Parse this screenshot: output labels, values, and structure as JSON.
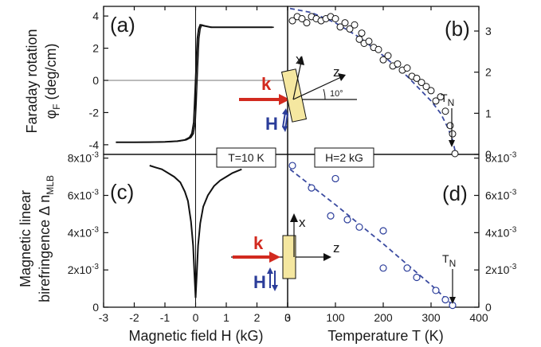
{
  "figure": {
    "y_title_top": [
      "Faraday rotation",
      "φF (deg/cm)"
    ],
    "y_title_bottom": [
      "Magnetic linear",
      "birefringence Δ nMLB"
    ],
    "x_title_left": "Magnetic field H (kG)",
    "x_title_right": "Temperature T (K)",
    "label_T": "T=10 K",
    "label_H": "H=2 kG",
    "tn_label": "TN",
    "inset_angle": "10°",
    "inset_k": "k",
    "inset_H": "H",
    "inset_x": "x",
    "inset_z": "z",
    "colors": {
      "k_arrow": "#d22a1f",
      "H_arrow": "#2b3d9a",
      "fit_line": "#3a4aa0",
      "sample": "#f5e7a0",
      "line": "#111111"
    }
  },
  "chart_data": [
    {
      "panel": "(a)",
      "type": "line",
      "xlabel": "Magnetic field H (kG)",
      "ylabel": "Faraday rotation φF (deg/cm)",
      "xlim": [
        -3,
        3
      ],
      "ylim": [
        -4.6,
        4.6
      ],
      "xticks": [
        -3,
        -2,
        -1,
        0,
        1,
        2,
        3
      ],
      "yticks": [
        -4,
        -2,
        0,
        2,
        4
      ],
      "series": [
        {
          "x": [
            -2.6,
            -2.0,
            -1.5,
            -1.0,
            -0.6,
            -0.35,
            -0.2,
            -0.12,
            -0.06,
            -0.03,
            0.0,
            0.03,
            0.06,
            0.1,
            0.15,
            0.25,
            0.5,
            1.0,
            1.5,
            2.0,
            2.5
          ],
          "y": [
            -3.85,
            -3.85,
            -3.84,
            -3.82,
            -3.78,
            -3.7,
            -3.55,
            -3.3,
            -2.6,
            -1.4,
            0.0,
            1.4,
            2.6,
            3.2,
            3.45,
            3.4,
            3.3,
            3.3,
            3.3,
            3.3,
            3.3
          ]
        }
      ]
    },
    {
      "panel": "(b)",
      "type": "scatter",
      "xlabel": "",
      "ylabel": "",
      "xlim": [
        0,
        400
      ],
      "ylim": [
        0,
        3.6
      ],
      "yticks_right": [
        0,
        1,
        2,
        3
      ],
      "series": [
        {
          "x": [
            10,
            20,
            30,
            40,
            50,
            60,
            70,
            80,
            90,
            100,
            110,
            120,
            130,
            140,
            150,
            155,
            160,
            170,
            180,
            190,
            200,
            210,
            220,
            230,
            240,
            250,
            260,
            270,
            280,
            290,
            300,
            310,
            320,
            330,
            340,
            345,
            350
          ],
          "y": [
            3.25,
            3.35,
            3.3,
            3.2,
            3.35,
            3.3,
            3.25,
            3.3,
            3.35,
            3.3,
            3.1,
            3.2,
            3.05,
            3.15,
            2.8,
            2.95,
            2.7,
            2.75,
            2.6,
            2.55,
            2.3,
            2.4,
            2.15,
            2.2,
            2.05,
            2.1,
            1.9,
            1.85,
            1.75,
            1.65,
            1.55,
            1.3,
            1.4,
            1.05,
            0.7,
            0.5,
            0.02
          ]
        },
        {
          "name": "",
          "style": "dashed",
          "x": [
            5,
            50,
            100,
            150,
            200,
            250,
            300,
            320,
            335,
            345,
            352
          ],
          "y": [
            3.55,
            3.45,
            3.2,
            2.85,
            2.4,
            1.9,
            1.3,
            1.0,
            0.65,
            0.35,
            0.0
          ]
        }
      ]
    },
    {
      "panel": "(c)",
      "type": "line",
      "xlabel": "Magnetic field H (kG)",
      "ylabel": "Magnetic linear birefringence Δ nMLB",
      "xlim": [
        -3,
        3
      ],
      "ylim": [
        0,
        0.0082
      ],
      "xticks": [
        -3,
        -2,
        -1,
        0,
        1,
        2,
        3
      ],
      "yticks": [
        0,
        0.002,
        0.004,
        0.006,
        0.008
      ],
      "ytick_labels": [
        "0",
        "2x10",
        "4x10",
        "6x10",
        "8x10"
      ],
      "ytick_exponent": "-3",
      "series": [
        {
          "x": [
            -1.5,
            -1.3,
            -1.1,
            -0.9,
            -0.7,
            -0.5,
            -0.35,
            -0.25,
            -0.15,
            -0.08,
            -0.04,
            0.0,
            0.04,
            0.08,
            0.15,
            0.25,
            0.4,
            0.6,
            0.8,
            1.0,
            1.2,
            1.5
          ],
          "y": [
            0.0076,
            0.0075,
            0.0074,
            0.0072,
            0.007,
            0.0067,
            0.0062,
            0.0057,
            0.0046,
            0.0033,
            0.0018,
            0.0005,
            0.0018,
            0.0033,
            0.0045,
            0.0054,
            0.006,
            0.0065,
            0.0068,
            0.007,
            0.0072,
            0.0074
          ]
        }
      ]
    },
    {
      "panel": "(d)",
      "type": "scatter",
      "xlabel": "Temperature T (K)",
      "ylabel": "",
      "xlim": [
        0,
        400
      ],
      "ylim": [
        0,
        0.0082
      ],
      "xticks": [
        0,
        100,
        200,
        300,
        400
      ],
      "yticks_right": [
        0,
        0.002,
        0.004,
        0.006,
        0.008
      ],
      "ytick_labels": [
        "0",
        "2x10",
        "4x10",
        "6x10",
        "8x10"
      ],
      "ytick_exponent": "-3",
      "series": [
        {
          "x": [
            10,
            50,
            90,
            100,
            125,
            150,
            200,
            200,
            250,
            270,
            310,
            330,
            345
          ],
          "y": [
            0.0076,
            0.0064,
            0.0049,
            0.0069,
            0.0047,
            0.0043,
            0.0041,
            0.0021,
            0.0021,
            0.0016,
            0.0009,
            0.0004,
            0.0001
          ]
        },
        {
          "name": "",
          "style": "dashed",
          "x": [
            5,
            100,
            200,
            300,
            350
          ],
          "y": [
            0.0074,
            0.0055,
            0.0034,
            0.0012,
            0.0
          ]
        }
      ]
    }
  ]
}
